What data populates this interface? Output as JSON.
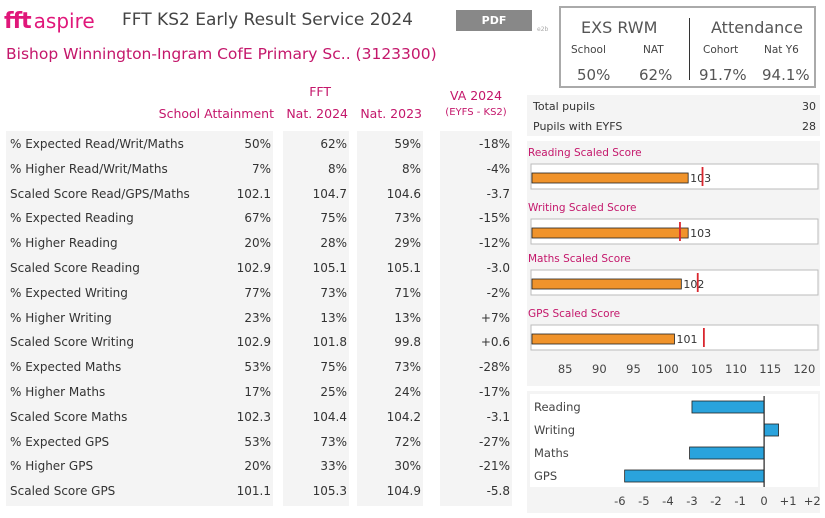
{
  "header": {
    "logo_fft": "fft",
    "logo_aspire": "aspire",
    "title": "FFT KS2 Early Result Service 2024",
    "school": "Bishop Winnington-Ingram CofE Primary Sc.. (3123300)",
    "pdf_label": "PDF",
    "tag": "e2b"
  },
  "kpi": {
    "exs_title": "EXS RWM",
    "exs_school_label": "School",
    "exs_nat_label": "NAT",
    "exs_school_value": "50%",
    "exs_nat_value": "62%",
    "att_title": "Attendance",
    "att_cohort_label": "Cohort",
    "att_nat_label": "Nat Y6",
    "att_cohort_value": "91.7%",
    "att_nat_value": "94.1%"
  },
  "table": {
    "headers": {
      "attainment": "School Attainment",
      "fft": "FFT",
      "nat2024": "Nat. 2024",
      "nat2023": "Nat. 2023",
      "va": "VA 2024",
      "va_sub": "(EYFS - KS2)"
    },
    "rows": [
      {
        "label": "% Expected Read/Writ/Maths",
        "school": "50%",
        "nat2024": "62%",
        "nat2023": "59%",
        "va": "-18%"
      },
      {
        "label": "% Higher Read/Writ/Maths",
        "school": "7%",
        "nat2024": "8%",
        "nat2023": "8%",
        "va": "-4%"
      },
      {
        "label": "Scaled Score Read/GPS/Maths",
        "school": "102.1",
        "nat2024": "104.7",
        "nat2023": "104.6",
        "va": "-3.7"
      },
      {
        "label": "% Expected Reading",
        "school": "67%",
        "nat2024": "75%",
        "nat2023": "73%",
        "va": "-15%"
      },
      {
        "label": "% Higher Reading",
        "school": "20%",
        "nat2024": "28%",
        "nat2023": "29%",
        "va": "-12%"
      },
      {
        "label": "Scaled Score Reading",
        "school": "102.9",
        "nat2024": "105.1",
        "nat2023": "105.1",
        "va": "-3.0"
      },
      {
        "label": "% Expected Writing",
        "school": "77%",
        "nat2024": "73%",
        "nat2023": "71%",
        "va": "-2%"
      },
      {
        "label": "% Higher Writing",
        "school": "23%",
        "nat2024": "13%",
        "nat2023": "13%",
        "va": "+7%"
      },
      {
        "label": "Scaled Score Writing",
        "school": "102.9",
        "nat2024": "101.8",
        "nat2023": "99.8",
        "va": "+0.6"
      },
      {
        "label": "% Expected Maths",
        "school": "53%",
        "nat2024": "75%",
        "nat2023": "73%",
        "va": "-28%"
      },
      {
        "label": "% Higher Maths",
        "school": "17%",
        "nat2024": "25%",
        "nat2023": "24%",
        "va": "-17%"
      },
      {
        "label": "Scaled Score Maths",
        "school": "102.3",
        "nat2024": "104.4",
        "nat2023": "104.2",
        "va": "-3.1"
      },
      {
        "label": "% Expected GPS",
        "school": "53%",
        "nat2024": "73%",
        "nat2023": "72%",
        "va": "-27%"
      },
      {
        "label": "% Higher GPS",
        "school": "20%",
        "nat2024": "33%",
        "nat2023": "30%",
        "va": "-21%"
      },
      {
        "label": "Scaled Score GPS",
        "school": "101.1",
        "nat2024": "105.3",
        "nat2023": "104.9",
        "va": "-5.8"
      }
    ]
  },
  "pupils": {
    "total_label": "Total pupils",
    "total_value": "30",
    "eyfs_label": "Pupils with EYFS",
    "eyfs_value": "28"
  },
  "colors": {
    "accent": "#c4176b",
    "bar_orange": "#f0932b",
    "bar_blue": "#2aa3dc",
    "marker_red": "#d9262e"
  },
  "chart_data": [
    {
      "type": "bar",
      "orientation": "horizontal",
      "xlim": [
        80,
        122
      ],
      "xticks": [
        "85",
        "90",
        "95",
        "100",
        "105",
        "110",
        "115",
        "120"
      ],
      "panels": [
        {
          "title": "Reading Scaled Score",
          "value": 103,
          "label": "103",
          "national": 105.1
        },
        {
          "title": "Writing Scaled Score",
          "value": 103,
          "label": "103",
          "national": 101.8
        },
        {
          "title": "Maths Scaled Score",
          "value": 102,
          "label": "102",
          "national": 104.4
        },
        {
          "title": "GPS Scaled Score",
          "value": 101,
          "label": "101",
          "national": 105.3
        }
      ]
    },
    {
      "type": "bar",
      "orientation": "horizontal",
      "categories": [
        "Reading",
        "Writing",
        "Maths",
        "GPS"
      ],
      "values": [
        -3.0,
        0.6,
        -3.1,
        -5.8
      ],
      "xlim": [
        -6.7,
        2.2
      ],
      "xticks": [
        "-6",
        "-5",
        "-4",
        "-3",
        "-2",
        "-1",
        "0",
        "+1",
        "+2"
      ]
    }
  ]
}
